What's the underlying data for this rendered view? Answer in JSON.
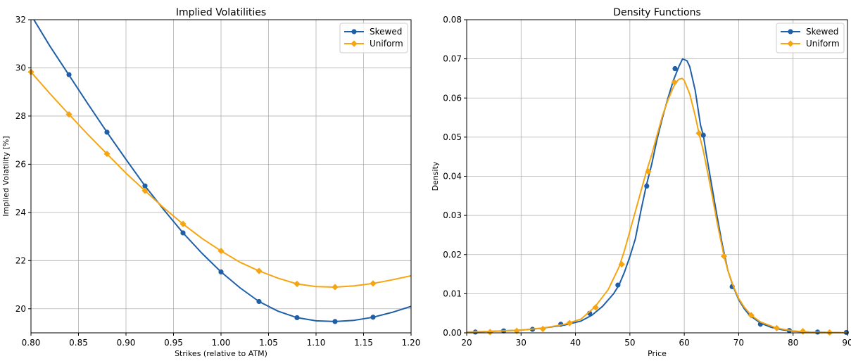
{
  "chart_data": [
    {
      "type": "line",
      "title": "Implied Volatilities",
      "xlabel": "Strikes (relative to ATM)",
      "ylabel": "Implied Volatility [%]",
      "xlim": [
        0.8,
        1.2
      ],
      "ylim": [
        19.0,
        32.0
      ],
      "xticks": [
        "0.80",
        "0.85",
        "0.90",
        "0.95",
        "1.00",
        "1.05",
        "1.10",
        "1.15",
        "1.20"
      ],
      "yticks": [
        "20",
        "22",
        "24",
        "26",
        "28",
        "30",
        "32"
      ],
      "grid": true,
      "legend": "top-right",
      "series": [
        {
          "name": "Skewed",
          "color": "#1f5fa8",
          "marker": "circle",
          "curve": {
            "x": [
              0.8,
              0.82,
              0.84,
              0.86,
              0.88,
              0.9,
              0.92,
              0.94,
              0.96,
              0.98,
              1.0,
              1.02,
              1.04,
              1.06,
              1.08,
              1.1,
              1.12,
              1.14,
              1.16,
              1.18,
              1.2
            ],
            "y": [
              32.2,
              30.9,
              29.7,
              28.5,
              27.33,
              26.2,
              25.1,
              24.1,
              23.15,
              22.3,
              21.53,
              20.87,
              20.3,
              19.9,
              19.63,
              19.5,
              19.47,
              19.52,
              19.65,
              19.85,
              20.1
            ]
          },
          "markers": {
            "x": [
              0.84,
              0.88,
              0.92,
              0.96,
              1.0,
              1.04,
              1.08,
              1.12,
              1.16
            ],
            "y": [
              29.72,
              27.33,
              25.1,
              23.15,
              21.53,
              20.3,
              19.63,
              19.47,
              19.65
            ]
          }
        },
        {
          "name": "Uniform",
          "color": "#f5a511",
          "marker": "diamond",
          "curve": {
            "x": [
              0.8,
              0.82,
              0.84,
              0.86,
              0.88,
              0.9,
              0.92,
              0.94,
              0.96,
              0.98,
              1.0,
              1.02,
              1.04,
              1.06,
              1.08,
              1.1,
              1.12,
              1.14,
              1.16,
              1.18,
              1.2
            ],
            "y": [
              29.83,
              28.93,
              28.07,
              27.23,
              26.43,
              25.63,
              24.9,
              24.18,
              23.52,
              22.92,
              22.4,
              21.93,
              21.57,
              21.27,
              21.03,
              20.92,
              20.9,
              20.95,
              21.05,
              21.2,
              21.37
            ]
          },
          "markers": {
            "x": [
              0.8,
              0.84,
              0.88,
              0.92,
              0.96,
              1.0,
              1.04,
              1.08,
              1.12,
              1.16
            ],
            "y": [
              29.83,
              28.07,
              26.43,
              24.9,
              23.52,
              22.4,
              21.57,
              21.03,
              20.9,
              21.05
            ]
          }
        }
      ]
    },
    {
      "type": "line",
      "title": "Density Functions",
      "xlabel": "Price",
      "ylabel": "Density",
      "xlim": [
        20,
        90
      ],
      "ylim": [
        0.0,
        0.08
      ],
      "xticks": [
        "20",
        "30",
        "40",
        "50",
        "60",
        "70",
        "80",
        "90"
      ],
      "yticks": [
        "0.00",
        "0.01",
        "0.02",
        "0.03",
        "0.04",
        "0.05",
        "0.06",
        "0.07",
        "0.08"
      ],
      "grid": true,
      "legend": "top-right",
      "series": [
        {
          "name": "Skewed",
          "color": "#1f5fa8",
          "marker": "circle",
          "curve": {
            "x": [
              20,
              25,
              30,
              34,
              38,
              41,
              43,
              45,
              47,
              48,
              49,
              50,
              51,
              52,
              53,
              54,
              55,
              56,
              57,
              58,
              59,
              59.7,
              60.5,
              61,
              62,
              63,
              63.5,
              64,
              65,
              66,
              67,
              68,
              69,
              70,
              71,
              72,
              74,
              76,
              78,
              80,
              83,
              86,
              90
            ],
            "y": [
              0.0002,
              0.0004,
              0.0007,
              0.0012,
              0.002,
              0.003,
              0.0045,
              0.0068,
              0.01,
              0.0122,
              0.0155,
              0.0195,
              0.024,
              0.031,
              0.0375,
              0.043,
              0.0495,
              0.055,
              0.06,
              0.0645,
              0.068,
              0.07,
              0.0695,
              0.068,
              0.062,
              0.053,
              0.0505,
              0.046,
              0.038,
              0.03,
              0.0225,
              0.016,
              0.0118,
              0.0085,
              0.0062,
              0.0045,
              0.0025,
              0.0014,
              0.0008,
              0.0004,
              0.0002,
              0.0001,
              0.0
            ]
          },
          "markers": {
            "x": [
              21.6,
              26.8,
              32.1,
              37.3,
              42.6,
              47.8,
              53.1,
              58.3,
              63.5,
              68.8,
              74.0,
              79.3,
              84.5,
              89.8
            ],
            "y": [
              0.0002,
              0.0005,
              0.0009,
              0.0022,
              0.005,
              0.0122,
              0.0375,
              0.0675,
              0.0505,
              0.0118,
              0.0022,
              0.0006,
              0.0002,
              0.0001
            ]
          }
        },
        {
          "name": "Uniform",
          "color": "#f5a511",
          "marker": "diamond",
          "curve": {
            "x": [
              20,
              25,
              30,
              34,
              38,
              41,
              43.5,
              46,
              48,
              49,
              50,
              51,
              52,
              53,
              54,
              55,
              56,
              57,
              58,
              58.5,
              59,
              59.6,
              60,
              61,
              62,
              62.7,
              63.5,
              64,
              65,
              66,
              67.3,
              68,
              69,
              70,
              71,
              72.3,
              74,
              77,
              80,
              83,
              86,
              90
            ],
            "y": [
              0.0002,
              0.0004,
              0.0007,
              0.0012,
              0.0022,
              0.0035,
              0.0065,
              0.011,
              0.0168,
              0.021,
              0.026,
              0.031,
              0.036,
              0.041,
              0.0455,
              0.0505,
              0.0555,
              0.0595,
              0.0628,
              0.064,
              0.0648,
              0.065,
              0.0645,
              0.061,
              0.0555,
              0.051,
              0.0465,
              0.043,
              0.036,
              0.0285,
              0.0196,
              0.016,
              0.012,
              0.0088,
              0.0066,
              0.0045,
              0.0028,
              0.0012,
              0.0005,
              0.0002,
              0.0001,
              0.0
            ]
          },
          "markers": {
            "x": [
              24.3,
              29.2,
              34.0,
              38.9,
              43.7,
              48.5,
              53.4,
              58.2,
              62.7,
              67.3,
              72.3,
              77.0,
              81.8,
              86.7
            ],
            "y": [
              0.0002,
              0.0005,
              0.001,
              0.0025,
              0.0065,
              0.0175,
              0.0412,
              0.064,
              0.051,
              0.0196,
              0.0045,
              0.0012,
              0.0004,
              0.0001
            ]
          }
        }
      ]
    }
  ]
}
